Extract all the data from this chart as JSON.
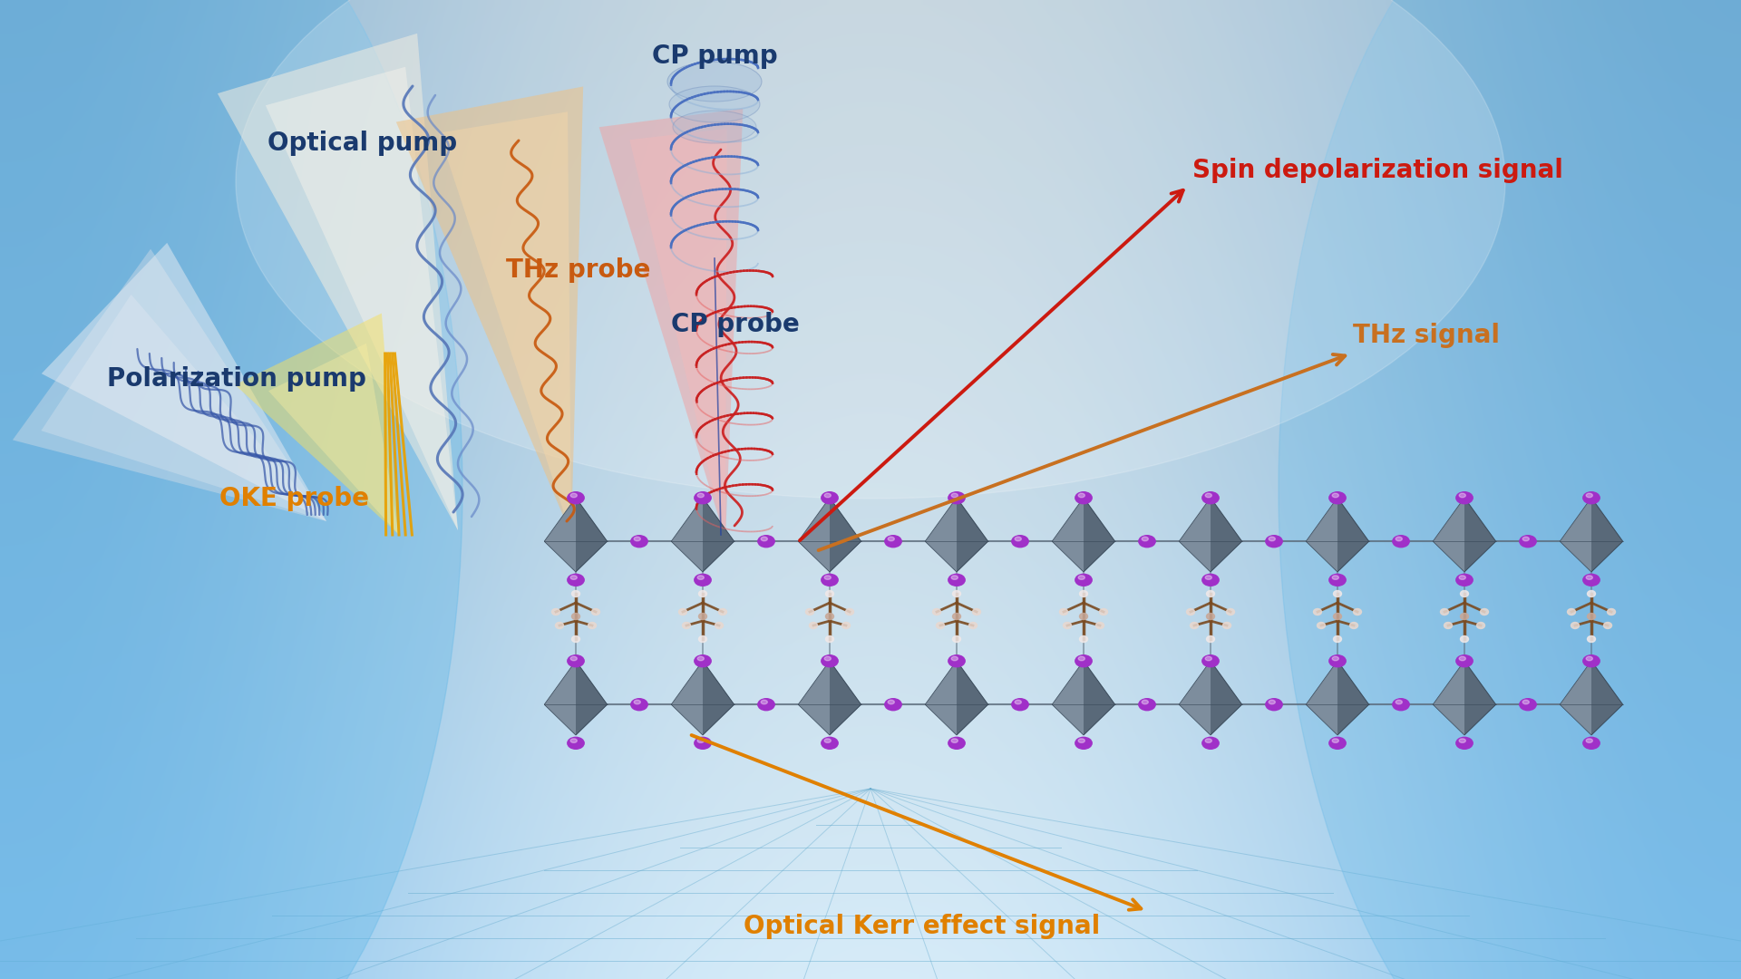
{
  "labels": {
    "optical_pump": "Optical pump",
    "cp_pump": "CP pump",
    "polarization_pump": "Polarization pump",
    "thz_probe": "THz probe",
    "cp_probe": "CP probe",
    "oke_probe": "OKE probe",
    "spin_signal": "Spin depolarization signal",
    "thz_signal": "THz signal",
    "oke_signal": "Optical Kerr effect signal"
  },
  "label_colors": {
    "optical_pump": "#1a3a6e",
    "cp_pump": "#1a3a6e",
    "polarization_pump": "#1a3a6e",
    "thz_probe": "#c85a10",
    "cp_probe": "#1a3a6e",
    "oke_probe": "#e08000",
    "spin_signal": "#cc1a10",
    "thz_signal": "#c87020",
    "oke_signal": "#e08000"
  },
  "font_size": 20
}
